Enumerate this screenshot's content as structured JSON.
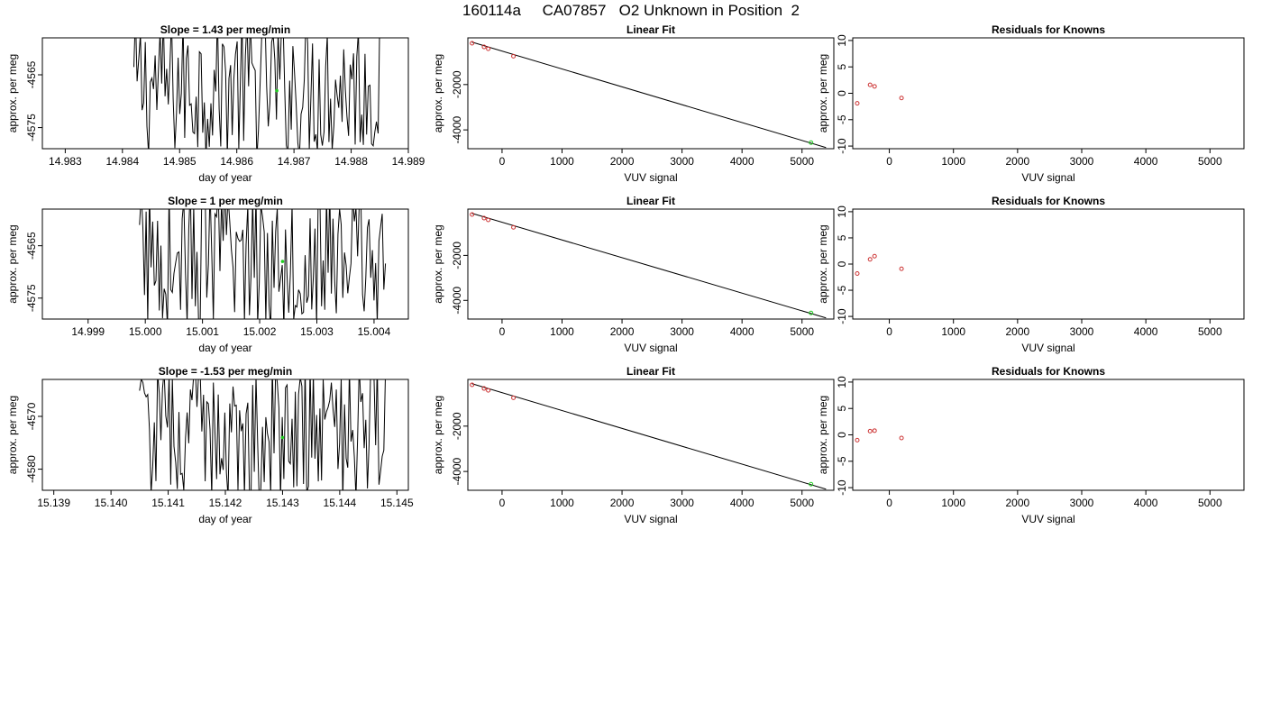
{
  "page": {
    "title": "160114a     CA07857   O2 Unknown in Position  2"
  },
  "colors": {
    "line": "#000000",
    "known_points": "#cc3333",
    "unknown_point": "#22cc22"
  },
  "chart_data": [
    {
      "type": "line",
      "row": 0,
      "panel": "time-series",
      "title": "Slope =  1.43  per meg/min",
      "xlabel": "day of year",
      "ylabel": "approx. per meg",
      "xlim": [
        14.9826,
        14.989
      ],
      "ylim": [
        -4579,
        -4558
      ],
      "xticks": [
        14.983,
        14.984,
        14.985,
        14.986,
        14.987,
        14.988,
        14.989
      ],
      "xtick_labels": [
        "14.983",
        "14.984",
        "14.985",
        "14.986",
        "14.987",
        "14.988",
        "14.989"
      ],
      "yticks": [
        -4565,
        -4575
      ],
      "ytick_labels": [
        "-4565",
        "-4575"
      ],
      "x_range_of_trace": [
        14.9842,
        14.9885
      ],
      "trace_y_range": [
        -4581,
        -4553
      ],
      "unknown_point": {
        "x": 14.9867,
        "y": -4568
      }
    },
    {
      "type": "scatter",
      "row": 0,
      "panel": "linear-fit",
      "title": "Linear Fit",
      "xlabel": "VUV signal",
      "ylabel": "approx. per meg",
      "xlim": [
        -570,
        5530
      ],
      "ylim": [
        -4830,
        60
      ],
      "xticks": [
        0,
        1000,
        2000,
        3000,
        4000,
        5000
      ],
      "xtick_labels": [
        "0",
        "1000",
        "2000",
        "3000",
        "4000",
        "5000"
      ],
      "yticks": [
        -2000,
        -4000
      ],
      "ytick_labels": [
        "-2000",
        "-4000"
      ],
      "knowns": {
        "x": [
          -500,
          -300,
          -230,
          190
        ],
        "y": [
          -180,
          -340,
          -420,
          -750
        ]
      },
      "unknown": {
        "x": 5150,
        "y": -4560
      },
      "fit_line": {
        "x": [
          -500,
          5400
        ],
        "y": [
          -130,
          -4780
        ]
      }
    },
    {
      "type": "scatter",
      "row": 0,
      "panel": "residuals",
      "title": "Residuals for Knowns",
      "xlabel": "VUV signal",
      "ylabel": "approx. per meg",
      "xlim": [
        -570,
        5530
      ],
      "ylim": [
        -10.5,
        10.5
      ],
      "xticks": [
        0,
        1000,
        2000,
        3000,
        4000,
        5000
      ],
      "xtick_labels": [
        "0",
        "1000",
        "2000",
        "3000",
        "4000",
        "5000"
      ],
      "yticks": [
        10,
        5,
        0,
        -5,
        -10
      ],
      "ytick_labels": [
        "10",
        "5",
        "0",
        "-5",
        "-10"
      ],
      "knowns": {
        "x": [
          -500,
          -300,
          -230,
          190
        ],
        "y": [
          -1.9,
          1.6,
          1.3,
          -0.9
        ]
      }
    },
    {
      "type": "line",
      "row": 1,
      "panel": "time-series",
      "title": "Slope =  1  per meg/min",
      "xlabel": "day of year",
      "ylabel": "approx. per meg",
      "xlim": [
        14.9982,
        15.0046
      ],
      "ylim": [
        -4579,
        -4558
      ],
      "xticks": [
        14.999,
        15.0,
        15.001,
        15.002,
        15.003,
        15.004
      ],
      "xtick_labels": [
        "14.999",
        "15.000",
        "15.001",
        "15.002",
        "15.003",
        "15.004"
      ],
      "yticks": [
        -4565,
        -4575
      ],
      "ytick_labels": [
        "-4565",
        "-4575"
      ],
      "x_range_of_trace": [
        14.9999,
        15.0042
      ],
      "trace_y_range": [
        -4581,
        -4553
      ],
      "unknown_point": {
        "x": 15.0024,
        "y": -4568
      }
    },
    {
      "type": "scatter",
      "row": 1,
      "panel": "linear-fit",
      "title": "Linear Fit",
      "xlabel": "VUV signal",
      "ylabel": "approx. per meg",
      "xlim": [
        -570,
        5530
      ],
      "ylim": [
        -4830,
        60
      ],
      "xticks": [
        0,
        1000,
        2000,
        3000,
        4000,
        5000
      ],
      "xtick_labels": [
        "0",
        "1000",
        "2000",
        "3000",
        "4000",
        "5000"
      ],
      "yticks": [
        -2000,
        -4000
      ],
      "ytick_labels": [
        "-2000",
        "-4000"
      ],
      "knowns": {
        "x": [
          -500,
          -300,
          -230,
          190
        ],
        "y": [
          -180,
          -340,
          -420,
          -750
        ]
      },
      "unknown": {
        "x": 5150,
        "y": -4560
      },
      "fit_line": {
        "x": [
          -500,
          5400
        ],
        "y": [
          -130,
          -4780
        ]
      }
    },
    {
      "type": "scatter",
      "row": 1,
      "panel": "residuals",
      "title": "Residuals for Knowns",
      "xlabel": "VUV signal",
      "ylabel": "approx. per meg",
      "xlim": [
        -570,
        5530
      ],
      "ylim": [
        -10.5,
        10.5
      ],
      "xticks": [
        0,
        1000,
        2000,
        3000,
        4000,
        5000
      ],
      "xtick_labels": [
        "0",
        "1000",
        "2000",
        "3000",
        "4000",
        "5000"
      ],
      "yticks": [
        10,
        5,
        0,
        -5,
        -10
      ],
      "ytick_labels": [
        "10",
        "5",
        "0",
        "-5",
        "-10"
      ],
      "knowns": {
        "x": [
          -500,
          -300,
          -230,
          190
        ],
        "y": [
          -1.8,
          0.9,
          1.5,
          -0.9
        ]
      }
    },
    {
      "type": "line",
      "row": 2,
      "panel": "time-series",
      "title": "Slope =  -1.53  per meg/min",
      "xlabel": "day of year",
      "ylabel": "approx. per meg",
      "xlim": [
        15.1388,
        15.1452
      ],
      "ylim": [
        -4584,
        -4563
      ],
      "xticks": [
        15.139,
        15.14,
        15.141,
        15.142,
        15.143,
        15.144,
        15.145
      ],
      "xtick_labels": [
        "15.139",
        "15.140",
        "15.141",
        "15.142",
        "15.143",
        "15.144",
        "15.145"
      ],
      "yticks": [
        -4570,
        -4580
      ],
      "ytick_labels": [
        "-4570",
        "-4580"
      ],
      "x_range_of_trace": [
        15.1405,
        15.1448
      ],
      "trace_y_range": [
        -4586,
        -4560
      ],
      "unknown_point": {
        "x": 15.143,
        "y": -4574
      }
    },
    {
      "type": "scatter",
      "row": 2,
      "panel": "linear-fit",
      "title": "Linear Fit",
      "xlabel": "VUV signal",
      "ylabel": "approx. per meg",
      "xlim": [
        -570,
        5530
      ],
      "ylim": [
        -4830,
        60
      ],
      "xticks": [
        0,
        1000,
        2000,
        3000,
        4000,
        5000
      ],
      "xtick_labels": [
        "0",
        "1000",
        "2000",
        "3000",
        "4000",
        "5000"
      ],
      "yticks": [
        -2000,
        -4000
      ],
      "ytick_labels": [
        "-2000",
        "-4000"
      ],
      "knowns": {
        "x": [
          -500,
          -300,
          -230,
          190
        ],
        "y": [
          -180,
          -340,
          -420,
          -750
        ]
      },
      "unknown": {
        "x": 5150,
        "y": -4560
      },
      "fit_line": {
        "x": [
          -500,
          5400
        ],
        "y": [
          -130,
          -4780
        ]
      }
    },
    {
      "type": "scatter",
      "row": 2,
      "panel": "residuals",
      "title": "Residuals for Knowns",
      "xlabel": "VUV signal",
      "ylabel": "approx. per meg",
      "xlim": [
        -570,
        5530
      ],
      "ylim": [
        -10.5,
        10.5
      ],
      "xticks": [
        0,
        1000,
        2000,
        3000,
        4000,
        5000
      ],
      "xtick_labels": [
        "0",
        "1000",
        "2000",
        "3000",
        "4000",
        "5000"
      ],
      "yticks": [
        10,
        5,
        0,
        -5,
        -10
      ],
      "ytick_labels": [
        "10",
        "5",
        "0",
        "-5",
        "-10"
      ],
      "knowns": {
        "x": [
          -500,
          -300,
          -230,
          190
        ],
        "y": [
          -1.0,
          0.7,
          0.8,
          -0.6
        ]
      }
    }
  ]
}
